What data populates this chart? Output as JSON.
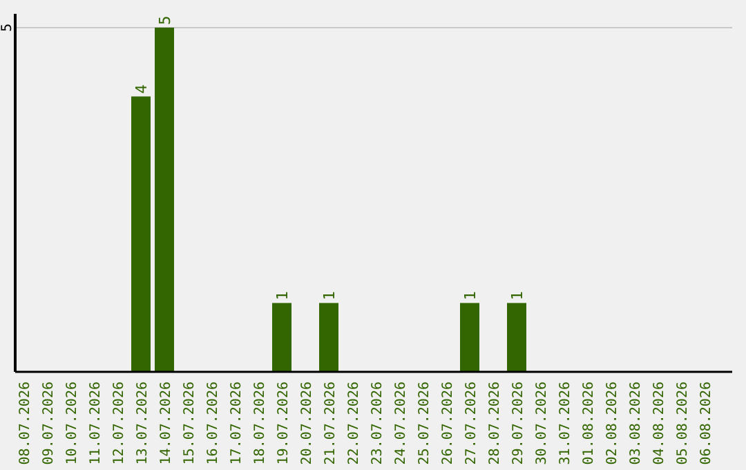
{
  "chart_data": {
    "type": "bar",
    "categories": [
      "08.07.2026",
      "09.07.2026",
      "10.07.2026",
      "11.07.2026",
      "12.07.2026",
      "13.07.2026",
      "14.07.2026",
      "15.07.2026",
      "16.07.2026",
      "17.07.2026",
      "18.07.2026",
      "19.07.2026",
      "20.07.2026",
      "21.07.2026",
      "22.07.2026",
      "23.07.2026",
      "24.07.2026",
      "25.07.2026",
      "26.07.2026",
      "27.07.2026",
      "28.07.2026",
      "29.07.2026",
      "30.07.2026",
      "31.07.2026",
      "01.08.2026",
      "02.08.2026",
      "03.08.2026",
      "04.08.2026",
      "05.08.2026",
      "06.08.2026"
    ],
    "values": [
      0,
      0,
      0,
      0,
      0,
      4,
      5,
      0,
      0,
      0,
      0,
      1,
      0,
      1,
      0,
      0,
      0,
      0,
      0,
      1,
      0,
      1,
      0,
      0,
      0,
      0,
      0,
      0,
      0,
      0
    ],
    "value_labels": [
      null,
      null,
      null,
      null,
      null,
      "4",
      "5",
      null,
      null,
      null,
      null,
      "1",
      null,
      "1",
      null,
      null,
      null,
      null,
      null,
      "1",
      null,
      "1",
      null,
      null,
      null,
      null,
      null,
      null,
      null,
      null
    ],
    "color": "#336600",
    "ylim": [
      0,
      5.2
    ],
    "yticks": [
      5
    ],
    "grid": "y"
  }
}
